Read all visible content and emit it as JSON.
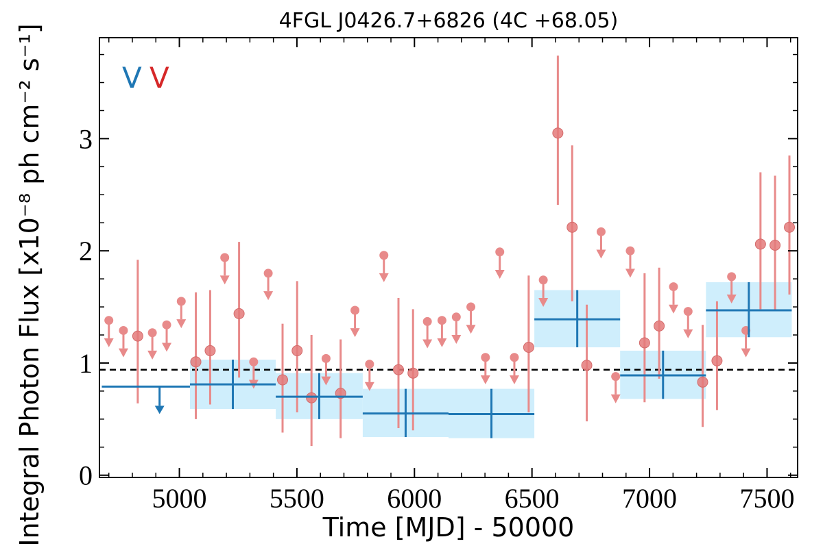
{
  "chart_data": {
    "type": "scatter",
    "title": "4FGL J0426.7+6826 (4C +68.05)",
    "xlabel": "Time [MJD] - 50000",
    "ylabel": "Integral Photon Flux [x10⁻⁸ ph cm⁻² s⁻¹]",
    "xlim": [
      4660,
      7630
    ],
    "ylim": [
      -0.02,
      3.9
    ],
    "xticks": [
      5000,
      5500,
      6000,
      6500,
      7000,
      7500
    ],
    "xtick_labels": [
      "5000",
      "5500",
      "6000",
      "6500",
      "7000",
      "7500"
    ],
    "yticks": [
      0,
      1,
      2,
      3
    ],
    "ytick_labels": [
      "0",
      "1",
      "2",
      "3"
    ],
    "reference_line": {
      "y": 0.94,
      "style": "dashed",
      "color": "#000000"
    },
    "band_labels": [
      {
        "text": "V",
        "color": "#1f77b4"
      },
      {
        "text": "V",
        "color": "#d62728"
      }
    ],
    "colors": {
      "fine": "#e88a8a",
      "coarse_line": "#1f77b4",
      "coarse_fill": "#cfeefc",
      "upper_limit_coarse": "#1f77b4"
    },
    "series": [
      {
        "bin": "coarse",
        "points": [
          {
            "x_lo": 4670,
            "x_hi": 5045,
            "y": 0.79,
            "upper_limit": true
          },
          {
            "x_lo": 5045,
            "x_hi": 5410,
            "y": 0.81,
            "y_lo": 0.59,
            "y_hi": 1.03
          },
          {
            "x_lo": 5410,
            "x_hi": 5780,
            "y": 0.7,
            "y_lo": 0.5,
            "y_hi": 0.91
          },
          {
            "x_lo": 5780,
            "x_hi": 6145,
            "y": 0.55,
            "y_lo": 0.34,
            "y_hi": 0.77
          },
          {
            "x_lo": 6145,
            "x_hi": 6510,
            "y": 0.545,
            "y_lo": 0.33,
            "y_hi": 0.77
          },
          {
            "x_lo": 6510,
            "x_hi": 6875,
            "y": 1.39,
            "y_lo": 1.14,
            "y_hi": 1.65
          },
          {
            "x_lo": 6875,
            "x_hi": 7240,
            "y": 0.89,
            "y_lo": 0.68,
            "y_hi": 1.11
          },
          {
            "x_lo": 7240,
            "x_hi": 7605,
            "y": 1.47,
            "y_lo": 1.23,
            "y_hi": 1.72
          }
        ]
      },
      {
        "bin": "fine",
        "points": [
          {
            "x": 4700,
            "y": 1.38,
            "upper_limit": true
          },
          {
            "x": 4762,
            "y": 1.29,
            "upper_limit": true
          },
          {
            "x": 4823,
            "y": 1.24,
            "y_lo": 0.64,
            "y_hi": 1.92
          },
          {
            "x": 4885,
            "y": 1.27,
            "upper_limit": true
          },
          {
            "x": 4946,
            "y": 1.34,
            "upper_limit": true
          },
          {
            "x": 5008,
            "y": 1.55,
            "upper_limit": true
          },
          {
            "x": 5070,
            "y": 1.01,
            "y_lo": 0.5,
            "y_hi": 1.63
          },
          {
            "x": 5131,
            "y": 1.11,
            "y_lo": 0.63,
            "y_hi": 1.65
          },
          {
            "x": 5193,
            "y": 1.94,
            "upper_limit": true
          },
          {
            "x": 5254,
            "y": 1.44,
            "y_lo": 0.87,
            "y_hi": 2.08
          },
          {
            "x": 5316,
            "y": 1.01,
            "upper_limit": true
          },
          {
            "x": 5378,
            "y": 1.8,
            "upper_limit": true
          },
          {
            "x": 5439,
            "y": 0.85,
            "y_lo": 0.38,
            "y_hi": 1.35
          },
          {
            "x": 5501,
            "y": 1.11,
            "y_lo": 0.56,
            "y_hi": 1.73
          },
          {
            "x": 5562,
            "y": 0.69,
            "y_lo": 0.26,
            "y_hi": 1.25
          },
          {
            "x": 5624,
            "y": 1.04,
            "upper_limit": true
          },
          {
            "x": 5686,
            "y": 0.73,
            "y_lo": 0.33,
            "y_hi": 1.21
          },
          {
            "x": 5747,
            "y": 1.47,
            "upper_limit": true
          },
          {
            "x": 5809,
            "y": 0.99,
            "upper_limit": true
          },
          {
            "x": 5870,
            "y": 1.96,
            "upper_limit": true
          },
          {
            "x": 5932,
            "y": 0.94,
            "y_lo": 0.42,
            "y_hi": 1.58
          },
          {
            "x": 5994,
            "y": 0.91,
            "y_lo": 0.4,
            "y_hi": 1.48
          },
          {
            "x": 6055,
            "y": 1.37,
            "upper_limit": true
          },
          {
            "x": 6117,
            "y": 1.38,
            "upper_limit": true
          },
          {
            "x": 6178,
            "y": 1.41,
            "upper_limit": true
          },
          {
            "x": 6240,
            "y": 1.5,
            "upper_limit": true
          },
          {
            "x": 6302,
            "y": 1.05,
            "upper_limit": true
          },
          {
            "x": 6363,
            "y": 1.99,
            "upper_limit": true
          },
          {
            "x": 6425,
            "y": 1.05,
            "upper_limit": true
          },
          {
            "x": 6486,
            "y": 1.14,
            "y_lo": 0.56,
            "y_hi": 1.78
          },
          {
            "x": 6548,
            "y": 1.74,
            "upper_limit": true
          },
          {
            "x": 6610,
            "y": 3.05,
            "y_lo": 2.41,
            "y_hi": 3.74
          },
          {
            "x": 6671,
            "y": 2.21,
            "y_lo": 1.55,
            "y_hi": 2.94
          },
          {
            "x": 6733,
            "y": 0.98,
            "y_lo": 0.48,
            "y_hi": 1.52
          },
          {
            "x": 6794,
            "y": 2.17,
            "upper_limit": true
          },
          {
            "x": 6856,
            "y": 0.88,
            "upper_limit": true
          },
          {
            "x": 6918,
            "y": 2.0,
            "upper_limit": true
          },
          {
            "x": 6979,
            "y": 1.18,
            "y_lo": 0.65,
            "y_hi": 1.8
          },
          {
            "x": 7041,
            "y": 1.33,
            "y_lo": 0.86,
            "y_hi": 1.85
          },
          {
            "x": 7102,
            "y": 1.68,
            "upper_limit": true
          },
          {
            "x": 7164,
            "y": 1.46,
            "upper_limit": true
          },
          {
            "x": 7226,
            "y": 0.83,
            "y_lo": 0.43,
            "y_hi": 1.34
          },
          {
            "x": 7287,
            "y": 1.02,
            "y_lo": 0.58,
            "y_hi": 1.55
          },
          {
            "x": 7349,
            "y": 1.77,
            "upper_limit": true
          },
          {
            "x": 7410,
            "y": 1.29,
            "upper_limit": true
          },
          {
            "x": 7472,
            "y": 2.06,
            "y_lo": 1.48,
            "y_hi": 2.7
          },
          {
            "x": 7534,
            "y": 2.05,
            "y_lo": 1.47,
            "y_hi": 2.67
          },
          {
            "x": 7595,
            "y": 2.21,
            "y_lo": 1.61,
            "y_hi": 2.85
          }
        ]
      }
    ]
  }
}
